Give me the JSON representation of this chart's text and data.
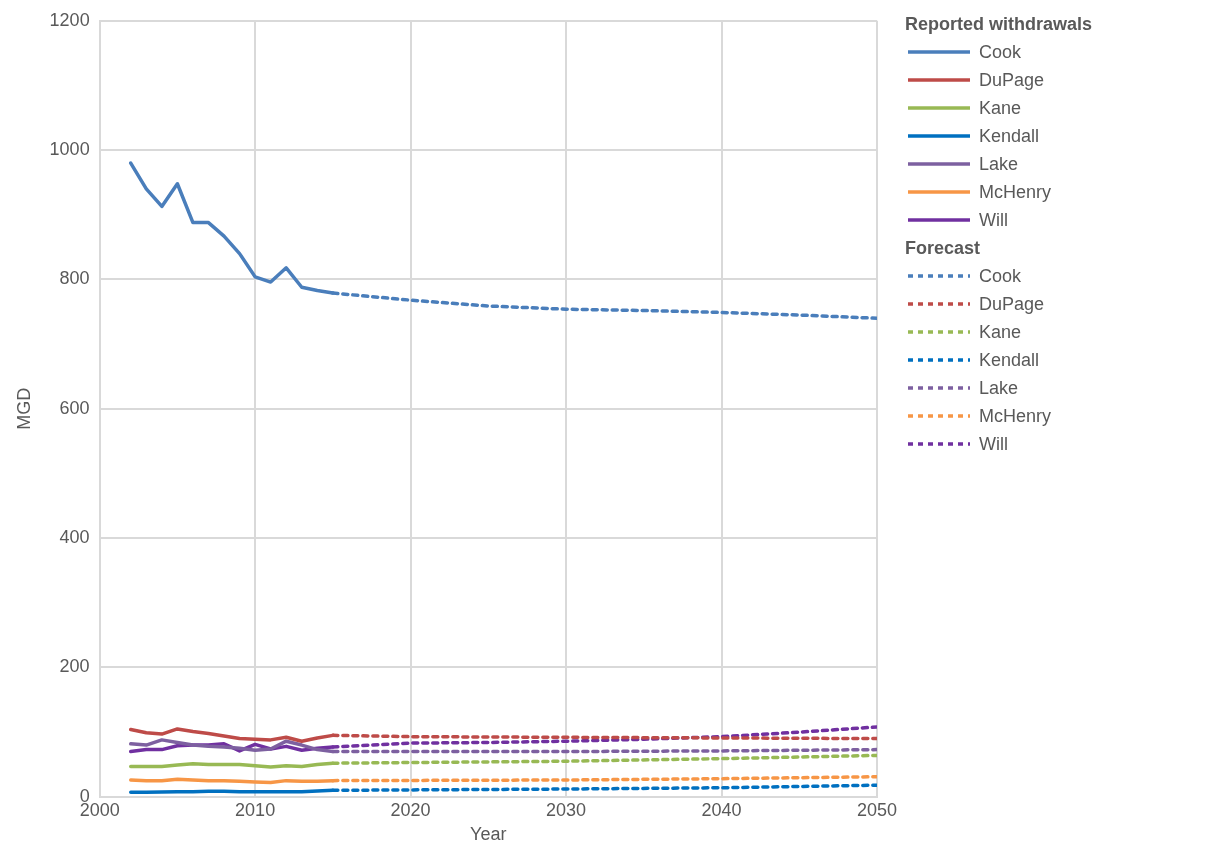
{
  "chart_data": {
    "type": "line",
    "xlabel": "Year",
    "ylabel": "MGD",
    "xlim": [
      2000,
      2050
    ],
    "xticks": [
      2000,
      2010,
      2020,
      2030,
      2040,
      2050
    ],
    "ylim": [
      0,
      1200
    ],
    "yticks": [
      0,
      200,
      400,
      600,
      800,
      1000,
      1200
    ],
    "grid": true,
    "legend": "right",
    "marker": "none",
    "legend_title": [
      "Reported withdrawals",
      "Forecast"
    ],
    "series": [
      {
        "name": "Cook",
        "color": "#4a7ebb",
        "line_style": "solid",
        "x": [
          2002,
          2003,
          2004,
          2005,
          2006,
          2007,
          2008,
          2009,
          2010,
          2011,
          2012,
          2013,
          2014,
          2015
        ],
        "values": [
          980,
          940,
          913,
          948,
          888,
          888,
          867,
          840,
          804,
          796,
          818,
          788,
          783,
          779
        ]
      },
      {
        "name": "DuPage",
        "color": "#be4b48",
        "line_style": "solid",
        "x": [
          2002,
          2003,
          2004,
          2005,
          2006,
          2007,
          2008,
          2009,
          2010,
          2011,
          2012,
          2013,
          2014,
          2015
        ],
        "values": [
          104,
          99,
          97,
          105,
          101,
          98,
          94,
          90,
          89,
          88,
          92,
          86,
          91,
          95
        ]
      },
      {
        "name": "Kane",
        "color": "#98b954",
        "line_style": "solid",
        "x": [
          2002,
          2003,
          2004,
          2005,
          2006,
          2007,
          2008,
          2009,
          2010,
          2011,
          2012,
          2013,
          2014,
          2015
        ],
        "values": [
          47,
          47,
          47,
          49,
          51,
          50,
          50,
          50,
          48,
          46,
          48,
          47,
          50,
          52
        ]
      },
      {
        "name": "Kendall",
        "color": "#0070c0",
        "line_style": "solid",
        "x": [
          2002,
          2003,
          2004,
          2005,
          2006,
          2007,
          2008,
          2009,
          2010,
          2011,
          2012,
          2013,
          2014,
          2015
        ],
        "values": [
          7,
          7,
          7.5,
          8,
          8,
          8.5,
          8.5,
          8,
          8,
          8,
          8,
          8,
          9,
          10
        ]
      },
      {
        "name": "Lake",
        "color": "#7d60a0",
        "line_style": "solid",
        "x": [
          2002,
          2003,
          2004,
          2005,
          2006,
          2007,
          2008,
          2009,
          2010,
          2011,
          2012,
          2013,
          2014,
          2015
        ],
        "values": [
          82,
          80,
          88,
          84,
          80,
          78,
          77,
          75,
          72,
          74,
          86,
          80,
          73,
          70
        ]
      },
      {
        "name": "McHenry",
        "color": "#f79646",
        "line_style": "solid",
        "x": [
          2002,
          2003,
          2004,
          2005,
          2006,
          2007,
          2008,
          2009,
          2010,
          2011,
          2012,
          2013,
          2014,
          2015
        ],
        "values": [
          26,
          25,
          25,
          27,
          26,
          25,
          25,
          24,
          23,
          22,
          25,
          24,
          24,
          25
        ]
      },
      {
        "name": "Will",
        "color": "#7030a0",
        "line_style": "solid",
        "x": [
          2002,
          2003,
          2004,
          2005,
          2006,
          2007,
          2008,
          2009,
          2010,
          2011,
          2012,
          2013,
          2014,
          2015
        ],
        "values": [
          70,
          73,
          73,
          79,
          80,
          80,
          82,
          71,
          81,
          74,
          78,
          72,
          75,
          77
        ]
      },
      {
        "name": "Cook",
        "color": "#4a7ebb",
        "line_style": "dashed",
        "x": [
          2015,
          2020,
          2025,
          2030,
          2035,
          2040,
          2045,
          2050
        ],
        "values": [
          779,
          768,
          759,
          754,
          752,
          749,
          745,
          740
        ]
      },
      {
        "name": "DuPage",
        "color": "#be4b48",
        "line_style": "dashed",
        "x": [
          2015,
          2020,
          2030,
          2040,
          2050
        ],
        "values": [
          95,
          93,
          92,
          91,
          90
        ]
      },
      {
        "name": "Kane",
        "color": "#98b954",
        "line_style": "dashed",
        "x": [
          2015,
          2020,
          2030,
          2040,
          2050
        ],
        "values": [
          52,
          53,
          55,
          59,
          64
        ]
      },
      {
        "name": "Kendall",
        "color": "#0070c0",
        "line_style": "dashed",
        "x": [
          2015,
          2030,
          2040,
          2050
        ],
        "values": [
          10,
          12,
          14,
          18
        ]
      },
      {
        "name": "Lake",
        "color": "#7d60a0",
        "line_style": "dashed",
        "x": [
          2015,
          2030,
          2040,
          2050
        ],
        "values": [
          70,
          70,
          71,
          73
        ]
      },
      {
        "name": "McHenry",
        "color": "#f79646",
        "line_style": "dashed",
        "x": [
          2015,
          2030,
          2040,
          2050
        ],
        "values": [
          25,
          26,
          28,
          31
        ]
      },
      {
        "name": "Will",
        "color": "#7030a0",
        "line_style": "dashed",
        "x": [
          2015,
          2020,
          2025,
          2030,
          2035,
          2040,
          2045,
          2050
        ],
        "values": [
          77,
          83,
          84,
          86,
          89,
          93,
          100,
          108
        ]
      }
    ]
  }
}
